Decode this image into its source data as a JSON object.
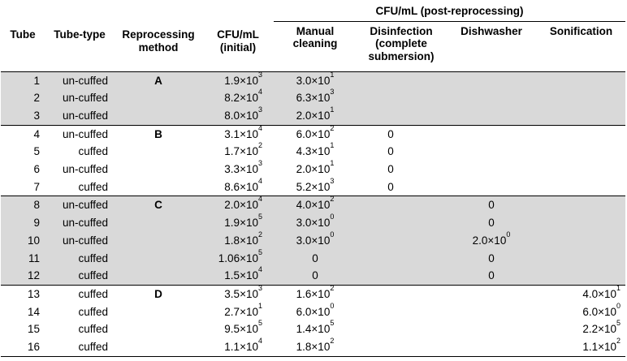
{
  "headers": {
    "tube": "Tube",
    "tube_type": "Tube-type",
    "method": "Reprocessing method",
    "initial": "CFU/mL (initial)",
    "post_group": "CFU/mL (post-reprocessing)",
    "manual": "Manual cleaning",
    "disinfection": "Disinfection (complete submersion)",
    "dishwasher": "Dishwasher",
    "sonification": "Sonification"
  },
  "rows": [
    {
      "tube": "1",
      "type": "un-cuffed",
      "method": "A",
      "initial": {
        "m": "1.9",
        "e": "3"
      },
      "manual": {
        "m": "3.0",
        "e": "1"
      },
      "disinf": "",
      "dish": null,
      "sonif": null
    },
    {
      "tube": "2",
      "type": "un-cuffed",
      "method": "",
      "initial": {
        "m": "8.2",
        "e": "4"
      },
      "manual": {
        "m": "6.3",
        "e": "3"
      },
      "disinf": "",
      "dish": null,
      "sonif": null
    },
    {
      "tube": "3",
      "type": "un-cuffed",
      "method": "",
      "initial": {
        "m": "8.0",
        "e": "3"
      },
      "manual": {
        "m": "2.0",
        "e": "1"
      },
      "disinf": "",
      "dish": null,
      "sonif": null
    },
    {
      "tube": "4",
      "type": "un-cuffed",
      "method": "B",
      "initial": {
        "m": "3.1",
        "e": "4"
      },
      "manual": {
        "m": "6.0",
        "e": "2"
      },
      "disinf": "0",
      "dish": null,
      "sonif": null
    },
    {
      "tube": "5",
      "type": "cuffed",
      "method": "",
      "initial": {
        "m": "1.7",
        "e": "2"
      },
      "manual": {
        "m": "4.3",
        "e": "1"
      },
      "disinf": "0",
      "dish": null,
      "sonif": null
    },
    {
      "tube": "6",
      "type": "un-cuffed",
      "method": "",
      "initial": {
        "m": "3.3",
        "e": "3"
      },
      "manual": {
        "m": "2.0",
        "e": "1"
      },
      "disinf": "0",
      "dish": null,
      "sonif": null
    },
    {
      "tube": "7",
      "type": "cuffed",
      "method": "",
      "initial": {
        "m": "8.6",
        "e": "4"
      },
      "manual": {
        "m": "5.2",
        "e": "3"
      },
      "disinf": "0",
      "dish": null,
      "sonif": null
    },
    {
      "tube": "8",
      "type": "un-cuffed",
      "method": "C",
      "initial": {
        "m": "2.0",
        "e": "4"
      },
      "manual": {
        "m": "4.0",
        "e": "2"
      },
      "disinf": "",
      "dish": {
        "m": "0",
        "e": ""
      },
      "sonif": null
    },
    {
      "tube": "9",
      "type": "un-cuffed",
      "method": "",
      "initial": {
        "m": "1.9",
        "e": "5"
      },
      "manual": {
        "m": "3.0",
        "e": "0"
      },
      "disinf": "",
      "dish": {
        "m": "0",
        "e": ""
      },
      "sonif": null
    },
    {
      "tube": "10",
      "type": "un-cuffed",
      "method": "",
      "initial": {
        "m": "1.8",
        "e": "2"
      },
      "manual": {
        "m": "3.0",
        "e": "0"
      },
      "disinf": "",
      "dish": {
        "m": "2.0",
        "e": "0"
      },
      "sonif": null
    },
    {
      "tube": "11",
      "type": "cuffed",
      "method": "",
      "initial": {
        "m": "1.06",
        "e": "5"
      },
      "manual": {
        "m": "0",
        "e": ""
      },
      "disinf": "",
      "dish": {
        "m": "0",
        "e": ""
      },
      "sonif": null
    },
    {
      "tube": "12",
      "type": "cuffed",
      "method": "",
      "initial": {
        "m": "1.5",
        "e": "4"
      },
      "manual": {
        "m": "0",
        "e": ""
      },
      "disinf": "",
      "dish": {
        "m": "0",
        "e": ""
      },
      "sonif": null
    },
    {
      "tube": "13",
      "type": "cuffed",
      "method": "D",
      "initial": {
        "m": "3.5",
        "e": "3"
      },
      "manual": {
        "m": "1.6",
        "e": "2"
      },
      "disinf": "",
      "dish": null,
      "sonif": {
        "m": "4.0",
        "e": "1"
      }
    },
    {
      "tube": "14",
      "type": "cuffed",
      "method": "",
      "initial": {
        "m": "2.7",
        "e": "1"
      },
      "manual": {
        "m": "6.0",
        "e": "0"
      },
      "disinf": "",
      "dish": null,
      "sonif": {
        "m": "6.0",
        "e": "0"
      }
    },
    {
      "tube": "15",
      "type": "cuffed",
      "method": "",
      "initial": {
        "m": "9.5",
        "e": "5"
      },
      "manual": {
        "m": "1.4",
        "e": "5"
      },
      "disinf": "",
      "dish": null,
      "sonif": {
        "m": "2.2",
        "e": "5"
      }
    },
    {
      "tube": "16",
      "type": "cuffed",
      "method": "",
      "initial": {
        "m": "1.1",
        "e": "4"
      },
      "manual": {
        "m": "1.8",
        "e": "2"
      },
      "disinf": "",
      "dish": null,
      "sonif": {
        "m": "1.1",
        "e": "2"
      }
    }
  ],
  "groups": [
    {
      "label": "A",
      "start": 0,
      "end": 2,
      "shaded": true
    },
    {
      "label": "B",
      "start": 3,
      "end": 6,
      "shaded": false
    },
    {
      "label": "C",
      "start": 7,
      "end": 11,
      "shaded": true
    },
    {
      "label": "D",
      "start": 12,
      "end": 15,
      "shaded": false
    }
  ],
  "times_sign": "×10"
}
